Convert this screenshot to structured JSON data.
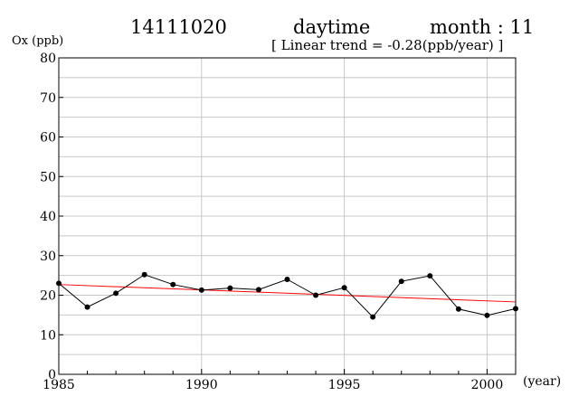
{
  "header": {
    "station": "14111020",
    "period": "daytime",
    "month": "month : 11",
    "trend": "[ Linear trend = -0.28(ppb/year) ]"
  },
  "chart_data": {
    "type": "line",
    "ylabel": "Ox (ppb)",
    "xlabel": "(year)",
    "xlim": [
      1985,
      2001
    ],
    "ylim": [
      0,
      80
    ],
    "x_ticks": [
      1985,
      1990,
      1995,
      2000
    ],
    "y_ticks": [
      0,
      10,
      20,
      30,
      40,
      50,
      60,
      70,
      80
    ],
    "grid": true,
    "series": [
      {
        "x": [
          1985,
          1986,
          1987,
          1988,
          1989,
          1990,
          1991,
          1992,
          1993,
          1994,
          1995,
          1996,
          1997,
          1998,
          1999,
          2000,
          2001
        ],
        "values": [
          23.0,
          17.0,
          20.5,
          25.2,
          22.7,
          21.3,
          21.8,
          21.4,
          24.0,
          20.0,
          21.9,
          14.5,
          23.5,
          24.9,
          16.5,
          14.9,
          16.6
        ],
        "color": "#000000"
      }
    ],
    "trend_line": {
      "x": [
        1985,
        2001
      ],
      "y": [
        22.7,
        18.3
      ],
      "color": "#ff0000"
    }
  }
}
